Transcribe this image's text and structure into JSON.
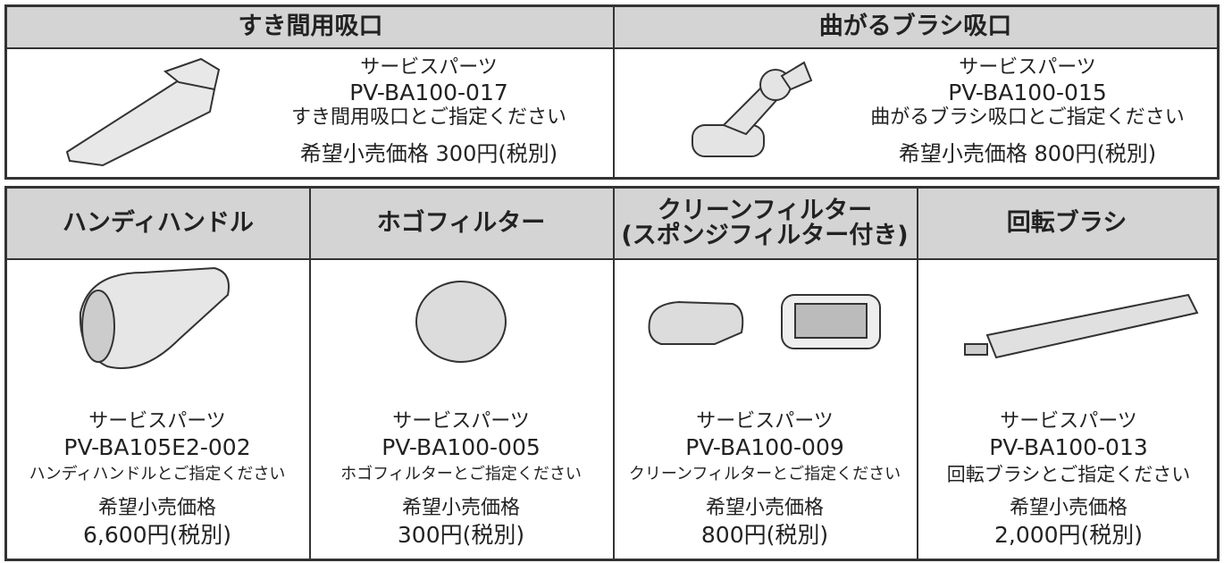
{
  "top_parts": [
    {
      "title": "すき間用吸口",
      "lines": [
        "サービスパーツ",
        "PV-BA100-017",
        "すき間用吸口とご指定ください",
        "希望小売価格 300円(税別)"
      ]
    },
    {
      "title": "曲がるブラシ吸口",
      "lines": [
        "サービスパーツ",
        "PV-BA100-015",
        "曲がるブラシ吸口とご指定ください",
        "希望小売価格 800円(税別)"
      ]
    }
  ],
  "bottom_parts": [
    {
      "title_lines": [
        "ハンディハンドル"
      ],
      "lines": [
        "サービスパーツ",
        "PV-BA105E2-002",
        "ハンディハンドルとご指定ください",
        "希望小売価格",
        "6,600円(税別)"
      ]
    },
    {
      "title_lines": [
        "ホゴフィルター"
      ],
      "lines": [
        "サービスパーツ",
        "PV-BA100-005",
        "ホゴフィルターとご指定ください",
        "希望小売価格",
        "300円(税別)"
      ]
    },
    {
      "title_lines": [
        "クリーンフィルター",
        "(スポンジフィルター付き)"
      ],
      "lines": [
        "サービスパーツ",
        "PV-BA100-009",
        "クリーンフィルターとご指定ください",
        "希望小売価格",
        "800円(税別)"
      ]
    },
    {
      "title_lines": [
        "回転ブラシ"
      ],
      "lines": [
        "サービスパーツ",
        "PV-BA100-013",
        "回転ブラシとご指定ください",
        "希望小売価格",
        "2,000円(税別)"
      ]
    }
  ]
}
